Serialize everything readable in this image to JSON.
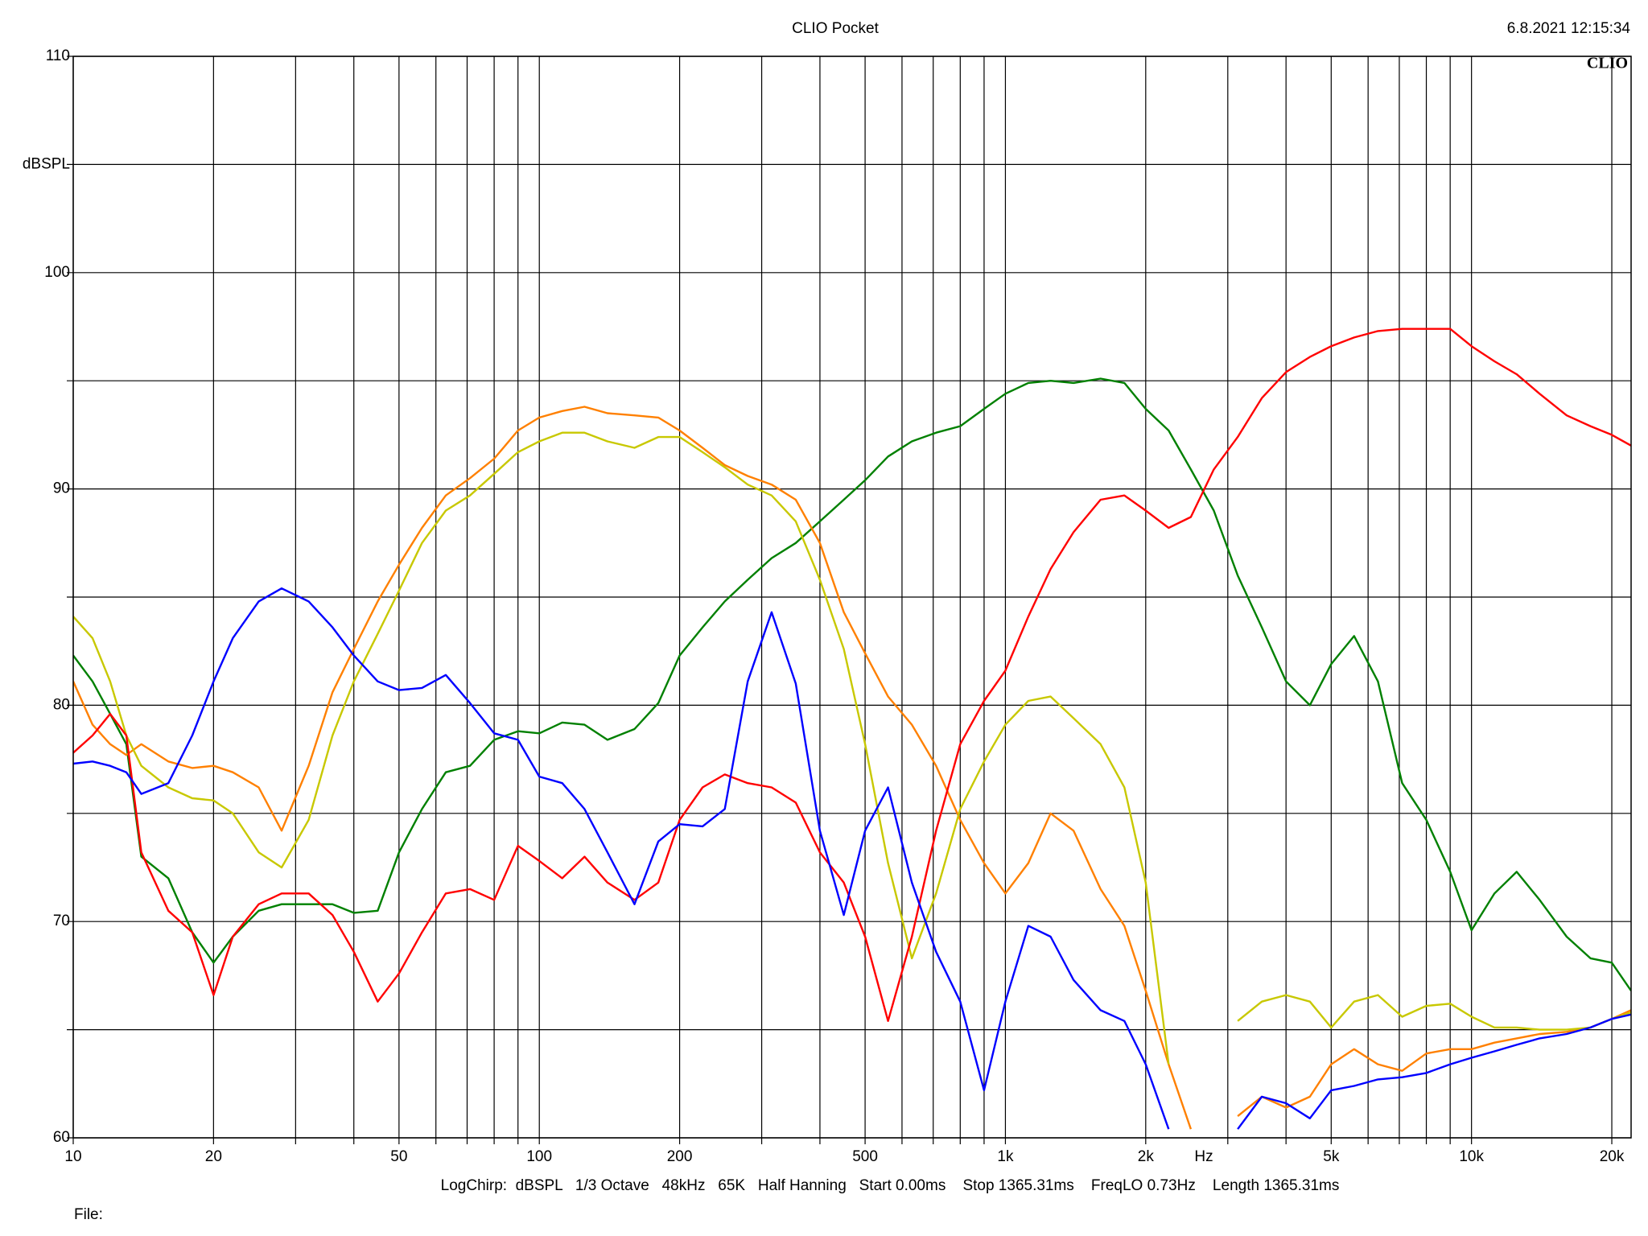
{
  "chart_data": {
    "type": "line",
    "title": "CLIO Pocket",
    "timestamp": "6.8.2021 12:15:34",
    "logo": "CLIO",
    "ylabel": "dBSPL",
    "xlabel": "Hz",
    "footer": "LogChirp:  dBSPL   1/3 Octave   48kHz   65K   Half Hanning   Start 0.00ms    Stop 1365.31ms    FreqLO 0.73Hz    Length 1365.31ms",
    "file_label": "File:",
    "xlog": true,
    "grid": true,
    "xlim": [
      10,
      22000
    ],
    "ylim": [
      60,
      110
    ],
    "xticks": [
      10,
      20,
      50,
      100,
      200,
      500,
      {
        "value": 1000,
        "label": "1k"
      },
      {
        "value": 2000,
        "label": "2k"
      },
      {
        "value": 5000,
        "label": "5k"
      },
      {
        "value": 10000,
        "label": "10k"
      },
      {
        "value": 20000,
        "label": "20k"
      }
    ],
    "xminor": [
      30,
      40,
      60,
      70,
      80,
      90,
      300,
      400,
      600,
      700,
      800,
      900,
      3000,
      4000,
      6000,
      7000,
      8000,
      9000
    ],
    "yticks": [
      60,
      70,
      80,
      90,
      100,
      110
    ],
    "yminor": [
      65,
      75,
      85,
      95,
      105
    ],
    "x": [
      10,
      11,
      12,
      13,
      14,
      16,
      18,
      20,
      22,
      25,
      28,
      32,
      36,
      40,
      45,
      50,
      56,
      63,
      71,
      80,
      90,
      100,
      112,
      125,
      140,
      160,
      180,
      200,
      224,
      250,
      280,
      315,
      355,
      400,
      450,
      500,
      560,
      630,
      710,
      800,
      900,
      1000,
      1120,
      1250,
      1400,
      1600,
      1800,
      2000,
      2240,
      2500,
      2800,
      3150,
      3550,
      4000,
      4500,
      5000,
      5600,
      6300,
      7100,
      8000,
      9000,
      10000,
      11200,
      12500,
      14000,
      16000,
      18000,
      20000,
      22000
    ],
    "series": [
      {
        "color": "#008000",
        "values": [
          82.3,
          81.1,
          79.6,
          78.2,
          73,
          72,
          69.5,
          68.1,
          69.3,
          70.5,
          70.8,
          70.8,
          70.8,
          70.4,
          70.5,
          73.2,
          75.2,
          76.9,
          77.2,
          78.4,
          78.8,
          78.7,
          79.2,
          79.1,
          78.4,
          78.9,
          80.1,
          82.3,
          83.6,
          84.8,
          85.8,
          86.8,
          87.5,
          88.5,
          89.5,
          90.4,
          91.5,
          92.2,
          92.6,
          92.9,
          93.7,
          94.4,
          94.9,
          95,
          94.9,
          95.1,
          94.9,
          93.7,
          92.7,
          90.9,
          89,
          86,
          83.6,
          81.1,
          80,
          81.9,
          83.2,
          81.1,
          76.4,
          74.7,
          72.3,
          69.6,
          71.3,
          72.3,
          71,
          69.3,
          68.3,
          68.1,
          66.8
        ]
      },
      {
        "color": "#ff8000",
        "values": [
          81.1,
          79.1,
          78.2,
          77.7,
          78.2,
          77.4,
          77.1,
          77.2,
          76.9,
          76.2,
          74.2,
          77.2,
          80.6,
          82.6,
          84.8,
          86.5,
          88.2,
          89.7,
          90.5,
          91.4,
          92.7,
          93.3,
          93.6,
          93.8,
          93.5,
          93.4,
          93.3,
          92.7,
          91.9,
          91.1,
          90.6,
          90.2,
          89.5,
          87.5,
          84.3,
          82.4,
          80.4,
          79.1,
          77.2,
          74.7,
          72.7,
          71.3,
          72.7,
          75,
          74.2,
          71.5,
          69.8,
          66.8,
          63.4,
          60.4,
          null,
          61,
          61.9,
          61.4,
          61.9,
          63.4,
          64.1,
          63.4,
          63.1,
          63.9,
          64.1,
          64.1,
          64.4,
          64.6,
          64.8,
          64.9,
          65.1,
          65.5,
          65.9
        ]
      },
      {
        "color": "#c8c800",
        "values": [
          84.1,
          83.1,
          81.1,
          78.6,
          77.2,
          76.2,
          75.7,
          75.6,
          75,
          73.2,
          72.5,
          74.7,
          78.6,
          81.1,
          83.3,
          85.3,
          87.5,
          89,
          89.7,
          90.7,
          91.7,
          92.2,
          92.6,
          92.6,
          92.2,
          91.9,
          92.4,
          92.4,
          91.7,
          91,
          90.2,
          89.7,
          88.5,
          85.8,
          82.6,
          78.2,
          72.7,
          68.3,
          71.3,
          75.2,
          77.4,
          79.1,
          80.2,
          80.4,
          79.4,
          78.2,
          76.2,
          71.8,
          63.4,
          null,
          null,
          65.4,
          66.3,
          66.6,
          66.3,
          65.1,
          66.3,
          66.6,
          65.6,
          66.1,
          66.2,
          65.6,
          65.1,
          65.1,
          65,
          65,
          65.1,
          65.5,
          65.8
        ]
      },
      {
        "color": "#ff0000",
        "values": [
          77.8,
          78.6,
          79.6,
          78.6,
          73.2,
          70.5,
          69.5,
          66.6,
          69.3,
          70.8,
          71.3,
          71.3,
          70.3,
          68.6,
          66.3,
          67.6,
          69.5,
          71.3,
          71.5,
          71,
          73.5,
          72.8,
          72,
          73,
          71.8,
          71,
          71.8,
          74.7,
          76.2,
          76.8,
          76.4,
          76.2,
          75.5,
          73.2,
          71.8,
          69.3,
          65.4,
          69.3,
          74.2,
          78.2,
          80.2,
          81.6,
          84.1,
          86.3,
          88,
          89.5,
          89.7,
          89,
          88.2,
          88.7,
          90.9,
          92.4,
          94.2,
          95.4,
          96.1,
          96.6,
          97,
          97.3,
          97.4,
          97.4,
          97.4,
          96.6,
          95.9,
          95.3,
          94.4,
          93.4,
          92.9,
          92.5,
          92
        ]
      },
      {
        "color": "#0000ff",
        "values": [
          77.3,
          77.4,
          77.2,
          76.9,
          75.9,
          76.4,
          78.6,
          81.1,
          83.1,
          84.8,
          85.4,
          84.8,
          83.6,
          82.3,
          81.1,
          80.7,
          80.8,
          81.4,
          80.1,
          78.7,
          78.4,
          76.7,
          76.4,
          75.2,
          73.2,
          70.8,
          73.7,
          74.5,
          74.4,
          75.2,
          81.1,
          84.3,
          81,
          74.2,
          70.3,
          74.2,
          76.2,
          71.8,
          68.6,
          66.3,
          62.2,
          66.3,
          69.8,
          69.3,
          67.3,
          65.9,
          65.4,
          63.4,
          60.4,
          null,
          null,
          60.4,
          61.9,
          61.6,
          60.9,
          62.2,
          62.4,
          62.7,
          62.8,
          63,
          63.4,
          63.7,
          64,
          64.3,
          64.6,
          64.8,
          65.1,
          65.5,
          65.7
        ]
      }
    ]
  }
}
